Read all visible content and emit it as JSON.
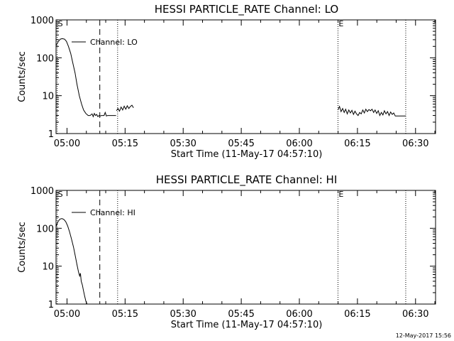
{
  "footer": {
    "timestamp": "12-May-2017 15:56"
  },
  "chart_data": [
    {
      "type": "line",
      "title": "HESSI PARTICLE_RATE Channel: LO",
      "xlabel": "Start Time (11-May-17 04:57:10)",
      "ylabel": "Counts/sec",
      "xlim_min": [
        0,
        98
      ],
      "ylim": [
        1,
        1000
      ],
      "yscale": "log",
      "x_ticks": [
        2.83,
        17.83,
        32.83,
        47.83,
        62.83,
        77.83,
        92.83
      ],
      "x_tick_labels": [
        "05:00",
        "05:15",
        "05:30",
        "05:45",
        "06:00",
        "06:15",
        "06:30"
      ],
      "y_ticks": [
        1,
        10,
        100,
        1000
      ],
      "y_tick_labels": [
        "1",
        "10",
        "100",
        "1000"
      ],
      "grid": false,
      "markers": [
        {
          "label": "S",
          "x": 0.3,
          "style": "dotted-edge"
        },
        {
          "label": "",
          "x": 11.3,
          "style": "dashed"
        },
        {
          "label": "",
          "x": 15.9,
          "style": "dotted"
        },
        {
          "label": "E",
          "x": 72.8,
          "style": "dotted"
        },
        {
          "label": "",
          "x": 90.3,
          "style": "dotted"
        }
      ],
      "legend": {
        "entries": [
          "Channel: LO"
        ],
        "position": "top-left"
      },
      "series": [
        {
          "name": "Channel: LO",
          "segments": [
            {
              "x": [
                0.0,
                0.6,
                1.1,
                1.6,
                2.2,
                2.7,
                3.2,
                3.8,
                4.3,
                4.9,
                5.4,
                6.0,
                6.6,
                7.1,
                7.7,
                8.3,
                8.8,
                9.3,
                9.6,
                9.9,
                10.2,
                10.5,
                10.8,
                11.1,
                11.4,
                11.7,
                12.0,
                12.4,
                12.7,
                13.0,
                13.3,
                13.6,
                13.9,
                14.2,
                14.5,
                14.8,
                15.1,
                15.5
              ],
              "y": [
                210,
                270,
                310,
                320,
                310,
                270,
                200,
                130,
                75,
                40,
                20,
                10,
                6,
                4.2,
                3.4,
                3.0,
                3.0,
                3.3,
                2.8,
                3.4,
                3.0,
                3.2,
                2.8,
                3.0,
                2.9,
                3.0,
                3.0,
                3.0,
                3.6,
                2.9,
                3.0,
                3.0,
                3.0,
                3.0,
                3.0,
                3.0,
                3.0,
                3.0
              ]
            },
            {
              "x": [
                15.6,
                16.0,
                16.4,
                16.8,
                17.2,
                17.6,
                18.0,
                18.4,
                18.8,
                19.2,
                19.6,
                20.0
              ],
              "y": [
                4.0,
                4.6,
                3.9,
                5.0,
                4.2,
                5.3,
                4.4,
                5.4,
                4.6,
                5.2,
                5.6,
                4.8
              ]
            },
            {
              "x": [
                72.8,
                73.2,
                73.6,
                74.0,
                74.4,
                74.8,
                75.2,
                75.6,
                76.0,
                76.4,
                76.8,
                77.2,
                77.6,
                78.0,
                78.4,
                78.8,
                79.2,
                79.6,
                80.0,
                80.4,
                80.8,
                81.2,
                81.6,
                82.0,
                82.4,
                82.8,
                83.2,
                83.6,
                84.0,
                84.4,
                84.8,
                85.2,
                85.6,
                86.0,
                86.4,
                86.8,
                87.2,
                87.6,
                88.0,
                88.6,
                89.2,
                89.8,
                90.3
              ],
              "y": [
                4.2,
                5.2,
                3.8,
                4.6,
                3.6,
                4.4,
                3.3,
                4.2,
                3.5,
                4.1,
                3.2,
                3.9,
                3.3,
                3.0,
                3.6,
                3.3,
                4.2,
                3.5,
                4.4,
                3.8,
                4.3,
                4.0,
                4.4,
                3.6,
                4.2,
                3.4,
                4.0,
                3.0,
                3.6,
                3.1,
                4.0,
                3.3,
                3.8,
                3.0,
                3.7,
                3.2,
                3.5,
                2.9,
                2.9,
                2.9,
                2.9,
                2.9,
                2.9
              ]
            }
          ]
        }
      ]
    },
    {
      "type": "line",
      "title": "HESSI PARTICLE_RATE Channel: HI",
      "xlabel": "Start Time (11-May-17 04:57:10)",
      "ylabel": "Counts/sec",
      "xlim_min": [
        0,
        98
      ],
      "ylim": [
        1,
        1000
      ],
      "yscale": "log",
      "x_ticks": [
        2.83,
        17.83,
        32.83,
        47.83,
        62.83,
        77.83,
        92.83
      ],
      "x_tick_labels": [
        "05:00",
        "05:15",
        "05:30",
        "05:45",
        "06:00",
        "06:15",
        "06:30"
      ],
      "y_ticks": [
        1,
        10,
        100,
        1000
      ],
      "y_tick_labels": [
        "1",
        "10",
        "100",
        "1000"
      ],
      "grid": false,
      "markers": [
        {
          "label": "S",
          "x": 0.3,
          "style": "dotted-edge"
        },
        {
          "label": "",
          "x": 11.3,
          "style": "dashed"
        },
        {
          "label": "",
          "x": 15.9,
          "style": "dotted"
        },
        {
          "label": "E",
          "x": 72.8,
          "style": "dotted"
        },
        {
          "label": "",
          "x": 90.3,
          "style": "dotted"
        }
      ],
      "legend": {
        "entries": [
          "Channel: HI"
        ],
        "position": "top-left"
      },
      "series": [
        {
          "name": "Channel: HI",
          "segments": [
            {
              "x": [
                0.0,
                0.5,
                1.0,
                1.5,
                2.0,
                2.5,
                3.0,
                3.5,
                4.0,
                4.5,
                5.0,
                5.4,
                5.8,
                6.1,
                6.3,
                6.5,
                6.8,
                7.1,
                7.4,
                7.7,
                8.0
              ],
              "y": [
                110,
                150,
                175,
                180,
                172,
                150,
                115,
                80,
                52,
                32,
                18,
                11,
                7,
                5.5,
                6.5,
                4.0,
                3.2,
                2.2,
                1.6,
                1.2,
                1.0
              ]
            }
          ]
        }
      ]
    }
  ]
}
